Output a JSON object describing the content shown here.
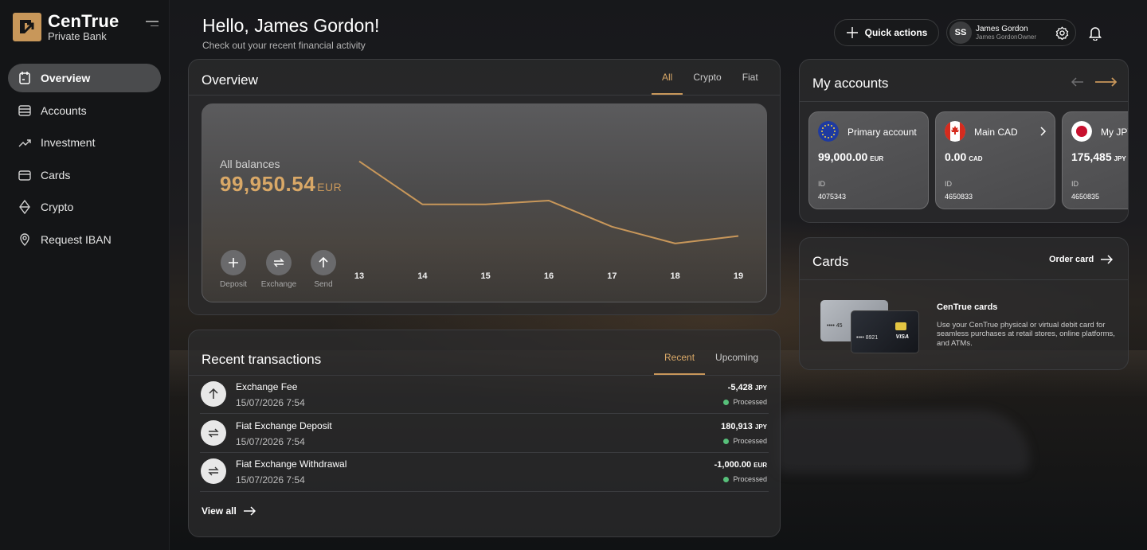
{
  "brand": {
    "name": "CenTrue",
    "subtitle": "Private Bank"
  },
  "sidebar": {
    "items": [
      {
        "label": "Overview",
        "icon": "calendar-icon",
        "active": true
      },
      {
        "label": "Accounts",
        "icon": "wallet-icon"
      },
      {
        "label": "Investment",
        "icon": "trend-up-icon"
      },
      {
        "label": "Cards",
        "icon": "card-icon"
      },
      {
        "label": "Crypto",
        "icon": "diamond-icon"
      },
      {
        "label": "Request IBAN",
        "icon": "location-pin-icon"
      }
    ]
  },
  "header": {
    "greeting": "Hello, James Gordon!",
    "subtitle": "Check out your recent financial activity",
    "quick_actions": "Quick actions",
    "user": {
      "initials": "SS",
      "name": "James Gordon",
      "role": "James GordonOwner"
    }
  },
  "overview": {
    "title": "Overview",
    "tabs": [
      "All",
      "Crypto",
      "Fiat"
    ],
    "active_tab": "All",
    "balance_label": "All balances",
    "balance_value": "99,950.54",
    "balance_currency": "EUR",
    "actions": [
      {
        "label": "Deposit",
        "icon": "plus-icon"
      },
      {
        "label": "Exchange",
        "icon": "exchange-icon"
      },
      {
        "label": "Send",
        "icon": "arrow-up-icon"
      }
    ]
  },
  "chart_data": {
    "type": "line",
    "x": [
      "13",
      "14",
      "15",
      "16",
      "17",
      "18",
      "19"
    ],
    "series": [
      {
        "values": [
          99980,
          99957,
          99957,
          99959,
          99945,
          99936,
          99940
        ]
      }
    ],
    "title": "",
    "xlabel": "",
    "ylabel": "",
    "grid": false,
    "color": "#c8975a"
  },
  "transactions": {
    "title": "Recent transactions",
    "tabs": [
      "Recent",
      "Upcoming"
    ],
    "active_tab": "Recent",
    "items": [
      {
        "name": "Exchange Fee",
        "date": "15/07/2026 7:54",
        "amount": "-5,428",
        "currency": "JPY",
        "status": "Processed",
        "icon": "arrow-up-icon"
      },
      {
        "name": "Fiat Exchange Deposit",
        "date": "15/07/2026 7:54",
        "amount": "180,913",
        "currency": "JPY",
        "status": "Processed",
        "icon": "exchange-icon"
      },
      {
        "name": "Fiat Exchange Withdrawal",
        "date": "15/07/2026 7:54",
        "amount": "-1,000.00",
        "currency": "EUR",
        "status": "Processed",
        "icon": "exchange-icon"
      }
    ],
    "view_all": "View all"
  },
  "accounts": {
    "title": "My accounts",
    "items": [
      {
        "name": "Primary account",
        "balance": "99,000.00",
        "currency": "EUR",
        "id_label": "ID",
        "id": "4075343",
        "flag": "eu-flag-icon"
      },
      {
        "name": "Main CAD",
        "balance": "0.00",
        "currency": "CAD",
        "id_label": "ID",
        "id": "4650833",
        "flag": "canada-flag-icon"
      },
      {
        "name": "My JPY",
        "balance": "175,485",
        "currency": "JPY",
        "id_label": "ID",
        "id": "4650835",
        "flag": "japan-flag-icon"
      }
    ]
  },
  "cards": {
    "title": "Cards",
    "order_label": "Order card",
    "promo_title": "CenTrue cards",
    "promo_desc": "Use your CenTrue physical or virtual debit card for seamless purchases at retail stores, online platforms, and ATMs.",
    "card_number_front": "•••• 8921",
    "card_number_back": "•••• 45",
    "card_brand": "VISA"
  },
  "colors": {
    "accent": "#c8975a",
    "status_ok": "#57c07a"
  }
}
